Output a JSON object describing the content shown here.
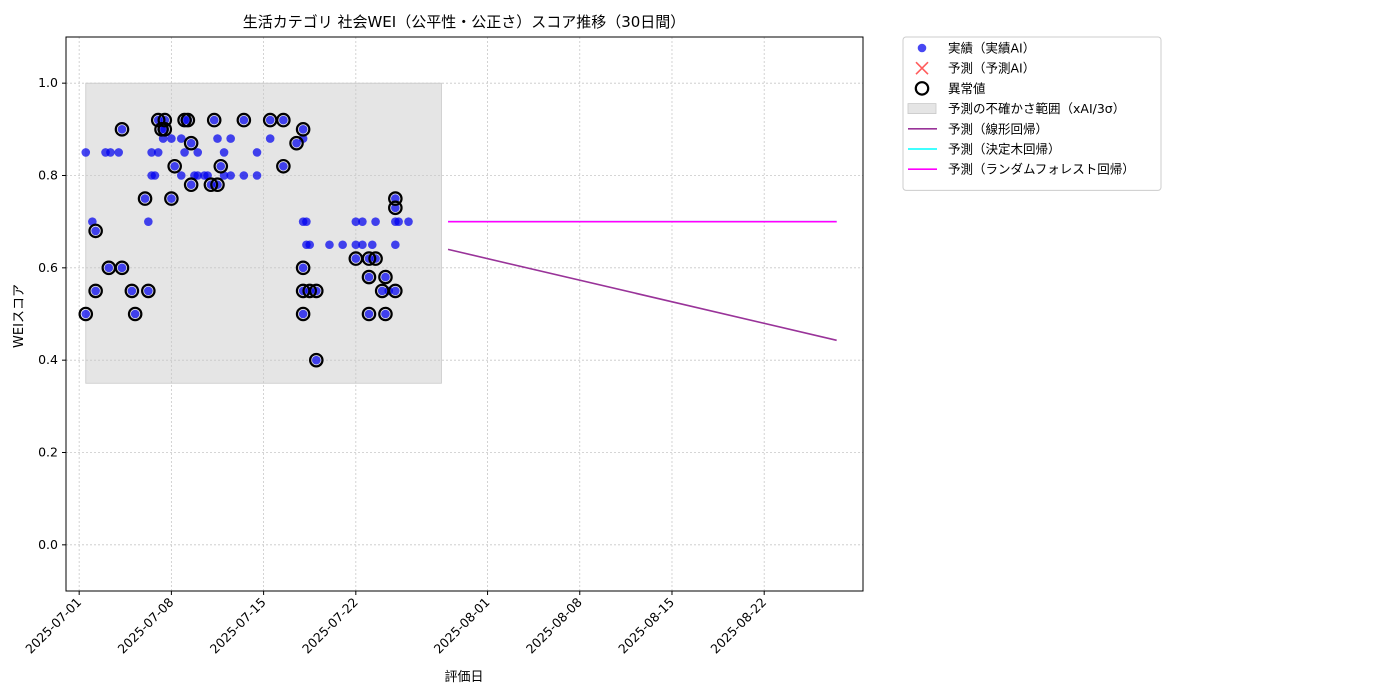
{
  "chart_data": {
    "type": "scatter",
    "title": "生活カテゴリ 社会WEI（公平性・公正さ）スコア推移（30日間）",
    "xlabel": "評価日",
    "ylabel": "WEIスコア",
    "xlim": [
      "2025-06-30T00:00",
      "2025-08-29T12:00"
    ],
    "ylim": [
      -0.1,
      1.1
    ],
    "yticks": [
      0.0,
      0.2,
      0.4,
      0.6,
      0.8,
      1.0
    ],
    "ytick_labels": [
      "0.0",
      "0.2",
      "0.4",
      "0.6",
      "0.8",
      "1.0"
    ],
    "xticks": [
      "2025-07-01",
      "2025-07-08",
      "2025-07-15",
      "2025-07-22",
      "2025-08-01",
      "2025-08-08",
      "2025-08-15",
      "2025-08-22"
    ],
    "grid": true,
    "legend_position": "outside-upper-right",
    "colors": {
      "actual": "#0000ee",
      "predicted": "#ff3333",
      "anomaly": "#000000",
      "uncertainty": "#d3d3d3",
      "linear": "#993399",
      "tree": "#00ffff",
      "forest": "#ff00ff"
    },
    "legend": [
      {
        "key": "actual",
        "label": "実績（実績AI）"
      },
      {
        "key": "predicted",
        "label": "予測（予測AI）"
      },
      {
        "key": "anomaly",
        "label": "異常値"
      },
      {
        "key": "uncertainty",
        "label": "予測の不確かさ範囲（xAI/3σ）"
      },
      {
        "key": "linear",
        "label": "予測（線形回帰）"
      },
      {
        "key": "tree",
        "label": "予測（決定木回帰）"
      },
      {
        "key": "forest",
        "label": "予測（ランダムフォレスト回帰）"
      }
    ],
    "uncertainty_band": {
      "x": [
        "2025-07-01T12:00",
        "2025-07-28T12:00"
      ],
      "y": [
        0.35,
        1.0
      ]
    },
    "actual": [
      [
        "2025-07-01T12:00",
        0.85
      ],
      [
        "2025-07-01T12:00",
        0.5
      ],
      [
        "2025-07-02T00:00",
        0.7
      ],
      [
        "2025-07-02T06:00",
        0.68
      ],
      [
        "2025-07-02T06:00",
        0.55
      ],
      [
        "2025-07-03T00:00",
        0.85
      ],
      [
        "2025-07-03T06:00",
        0.6
      ],
      [
        "2025-07-03T09:00",
        0.85
      ],
      [
        "2025-07-04T00:00",
        0.85
      ],
      [
        "2025-07-04T06:00",
        0.9
      ],
      [
        "2025-07-04T06:00",
        0.6
      ],
      [
        "2025-07-05T00:00",
        0.55
      ],
      [
        "2025-07-05T06:00",
        0.5
      ],
      [
        "2025-07-06T00:00",
        0.75
      ],
      [
        "2025-07-06T06:00",
        0.7
      ],
      [
        "2025-07-06T06:00",
        0.55
      ],
      [
        "2025-07-06T12:00",
        0.85
      ],
      [
        "2025-07-06T12:00",
        0.8
      ],
      [
        "2025-07-06T18:00",
        0.8
      ],
      [
        "2025-07-07T00:00",
        0.92
      ],
      [
        "2025-07-07T00:00",
        0.85
      ],
      [
        "2025-07-07T06:00",
        0.9
      ],
      [
        "2025-07-07T09:00",
        0.88
      ],
      [
        "2025-07-07T12:00",
        0.92
      ],
      [
        "2025-07-07T12:00",
        0.9
      ],
      [
        "2025-07-08T00:00",
        0.88
      ],
      [
        "2025-07-08T00:00",
        0.75
      ],
      [
        "2025-07-08T06:00",
        0.82
      ],
      [
        "2025-07-08T18:00",
        0.8
      ],
      [
        "2025-07-08T18:00",
        0.88
      ],
      [
        "2025-07-09T00:00",
        0.92
      ],
      [
        "2025-07-09T00:00",
        0.85
      ],
      [
        "2025-07-09T06:00",
        0.92
      ],
      [
        "2025-07-09T12:00",
        0.87
      ],
      [
        "2025-07-09T12:00",
        0.78
      ],
      [
        "2025-07-09T18:00",
        0.8
      ],
      [
        "2025-07-10T00:00",
        0.85
      ],
      [
        "2025-07-10T00:00",
        0.8
      ],
      [
        "2025-07-10T12:00",
        0.8
      ],
      [
        "2025-07-10T18:00",
        0.8
      ],
      [
        "2025-07-11T00:00",
        0.78
      ],
      [
        "2025-07-11T06:00",
        0.92
      ],
      [
        "2025-07-11T12:00",
        0.78
      ],
      [
        "2025-07-11T12:00",
        0.88
      ],
      [
        "2025-07-11T18:00",
        0.82
      ],
      [
        "2025-07-12T00:00",
        0.85
      ],
      [
        "2025-07-12T00:00",
        0.8
      ],
      [
        "2025-07-12T12:00",
        0.8
      ],
      [
        "2025-07-12T12:00",
        0.88
      ],
      [
        "2025-07-13T12:00",
        0.92
      ],
      [
        "2025-07-13T12:00",
        0.8
      ],
      [
        "2025-07-14T12:00",
        0.8
      ],
      [
        "2025-07-14T12:00",
        0.85
      ],
      [
        "2025-07-15T12:00",
        0.92
      ],
      [
        "2025-07-15T12:00",
        0.88
      ],
      [
        "2025-07-16T12:00",
        0.92
      ],
      [
        "2025-07-16T12:00",
        0.82
      ],
      [
        "2025-07-17T12:00",
        0.87
      ],
      [
        "2025-07-18T00:00",
        0.88
      ],
      [
        "2025-07-18T00:00",
        0.9
      ],
      [
        "2025-07-18T00:00",
        0.7
      ],
      [
        "2025-07-18T06:00",
        0.7
      ],
      [
        "2025-07-18T06:00",
        0.65
      ],
      [
        "2025-07-18T00:00",
        0.6
      ],
      [
        "2025-07-18T00:00",
        0.55
      ],
      [
        "2025-07-18T00:00",
        0.5
      ],
      [
        "2025-07-18T12:00",
        0.65
      ],
      [
        "2025-07-18T12:00",
        0.55
      ],
      [
        "2025-07-19T00:00",
        0.55
      ],
      [
        "2025-07-19T00:00",
        0.4
      ],
      [
        "2025-07-20T00:00",
        0.65
      ],
      [
        "2025-07-21T00:00",
        0.65
      ],
      [
        "2025-07-22T00:00",
        0.7
      ],
      [
        "2025-07-22T00:00",
        0.65
      ],
      [
        "2025-07-22T00:00",
        0.62
      ],
      [
        "2025-07-22T12:00",
        0.7
      ],
      [
        "2025-07-22T12:00",
        0.65
      ],
      [
        "2025-07-23T00:00",
        0.5
      ],
      [
        "2025-07-23T00:00",
        0.58
      ],
      [
        "2025-07-23T00:00",
        0.62
      ],
      [
        "2025-07-23T06:00",
        0.65
      ],
      [
        "2025-07-23T12:00",
        0.7
      ],
      [
        "2025-07-23T12:00",
        0.62
      ],
      [
        "2025-07-24T00:00",
        0.55
      ],
      [
        "2025-07-24T06:00",
        0.5
      ],
      [
        "2025-07-24T06:00",
        0.58
      ],
      [
        "2025-07-24T12:00",
        0.55
      ],
      [
        "2025-07-25T00:00",
        0.73
      ],
      [
        "2025-07-25T00:00",
        0.75
      ],
      [
        "2025-07-25T00:00",
        0.7
      ],
      [
        "2025-07-25T00:00",
        0.65
      ],
      [
        "2025-07-25T00:00",
        0.55
      ],
      [
        "2025-07-25T06:00",
        0.7
      ],
      [
        "2025-07-26T00:00",
        0.7
      ]
    ],
    "anomalies": [
      [
        "2025-07-01T12:00",
        0.5
      ],
      [
        "2025-07-02T06:00",
        0.68
      ],
      [
        "2025-07-02T06:00",
        0.55
      ],
      [
        "2025-07-03T06:00",
        0.6
      ],
      [
        "2025-07-04T06:00",
        0.9
      ],
      [
        "2025-07-04T06:00",
        0.6
      ],
      [
        "2025-07-05T00:00",
        0.55
      ],
      [
        "2025-07-05T06:00",
        0.5
      ],
      [
        "2025-07-06T00:00",
        0.75
      ],
      [
        "2025-07-06T06:00",
        0.55
      ],
      [
        "2025-07-07T00:00",
        0.92
      ],
      [
        "2025-07-07T06:00",
        0.9
      ],
      [
        "2025-07-07T12:00",
        0.92
      ],
      [
        "2025-07-07T12:00",
        0.9
      ],
      [
        "2025-07-08T00:00",
        0.75
      ],
      [
        "2025-07-08T06:00",
        0.82
      ],
      [
        "2025-07-09T00:00",
        0.92
      ],
      [
        "2025-07-09T06:00",
        0.92
      ],
      [
        "2025-07-09T12:00",
        0.87
      ],
      [
        "2025-07-09T12:00",
        0.78
      ],
      [
        "2025-07-11T00:00",
        0.78
      ],
      [
        "2025-07-11T06:00",
        0.92
      ],
      [
        "2025-07-11T12:00",
        0.78
      ],
      [
        "2025-07-11T18:00",
        0.82
      ],
      [
        "2025-07-13T12:00",
        0.92
      ],
      [
        "2025-07-15T12:00",
        0.92
      ],
      [
        "2025-07-16T12:00",
        0.92
      ],
      [
        "2025-07-16T12:00",
        0.82
      ],
      [
        "2025-07-17T12:00",
        0.87
      ],
      [
        "2025-07-18T00:00",
        0.9
      ],
      [
        "2025-07-18T00:00",
        0.6
      ],
      [
        "2025-07-18T00:00",
        0.55
      ],
      [
        "2025-07-18T00:00",
        0.5
      ],
      [
        "2025-07-18T12:00",
        0.55
      ],
      [
        "2025-07-19T00:00",
        0.55
      ],
      [
        "2025-07-19T00:00",
        0.4
      ],
      [
        "2025-07-22T00:00",
        0.62
      ],
      [
        "2025-07-23T00:00",
        0.5
      ],
      [
        "2025-07-23T00:00",
        0.58
      ],
      [
        "2025-07-23T00:00",
        0.62
      ],
      [
        "2025-07-23T12:00",
        0.62
      ],
      [
        "2025-07-24T00:00",
        0.55
      ],
      [
        "2025-07-24T06:00",
        0.5
      ],
      [
        "2025-07-24T06:00",
        0.58
      ],
      [
        "2025-07-25T00:00",
        0.73
      ],
      [
        "2025-07-25T00:00",
        0.75
      ],
      [
        "2025-07-25T00:00",
        0.55
      ]
    ],
    "lines": {
      "linear": {
        "x": [
          "2025-07-29T00:00",
          "2025-08-27T12:00"
        ],
        "y": [
          0.64,
          0.443
        ]
      },
      "tree": {
        "x": [
          "2025-07-29T00:00",
          "2025-08-27T12:00"
        ],
        "y": [
          0.7,
          0.7
        ]
      },
      "forest": {
        "x": [
          "2025-07-29T00:00",
          "2025-08-27T12:00"
        ],
        "y": [
          0.7,
          0.7
        ]
      }
    }
  }
}
